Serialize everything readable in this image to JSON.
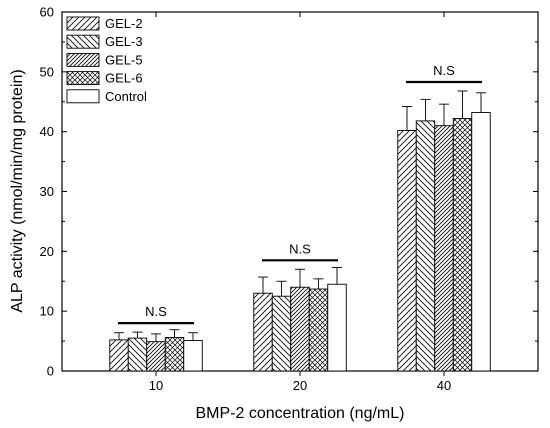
{
  "chart_data": {
    "type": "bar",
    "title": "",
    "xlabel": "BMP-2 concentration (ng/mL)",
    "ylabel": "ALP activity (nmol/min/mg protein)",
    "categories": [
      "10",
      "20",
      "40"
    ],
    "ylim": [
      0,
      60
    ],
    "yticks": [
      "0",
      "10",
      "20",
      "30",
      "40",
      "50",
      "60"
    ],
    "grid": false,
    "legend_position": "top-left",
    "series": [
      {
        "name": "GEL-2",
        "pattern": "diag-right",
        "values": [
          5.2,
          13.0,
          40.2
        ],
        "errors": [
          1.2,
          2.7,
          4.0
        ]
      },
      {
        "name": "GEL-3",
        "pattern": "diag-left",
        "values": [
          5.5,
          12.5,
          41.8
        ],
        "errors": [
          1.0,
          2.5,
          3.6
        ]
      },
      {
        "name": "GEL-5",
        "pattern": "diag-right-dense",
        "values": [
          4.9,
          14.0,
          41.0
        ],
        "errors": [
          1.3,
          3.0,
          3.6
        ]
      },
      {
        "name": "GEL-6",
        "pattern": "crosshatch",
        "values": [
          5.6,
          13.7,
          42.2
        ],
        "errors": [
          1.3,
          1.7,
          4.6
        ]
      },
      {
        "name": "Control",
        "pattern": "none",
        "values": [
          5.1,
          14.5,
          43.2
        ],
        "errors": [
          1.3,
          2.8,
          3.3
        ]
      }
    ],
    "annotations": [
      {
        "category": "10",
        "text": "N.S",
        "level": 8.0
      },
      {
        "category": "20",
        "text": "N.S",
        "level": 18.5
      },
      {
        "category": "40",
        "text": "N.S",
        "level": 48.3
      }
    ]
  }
}
